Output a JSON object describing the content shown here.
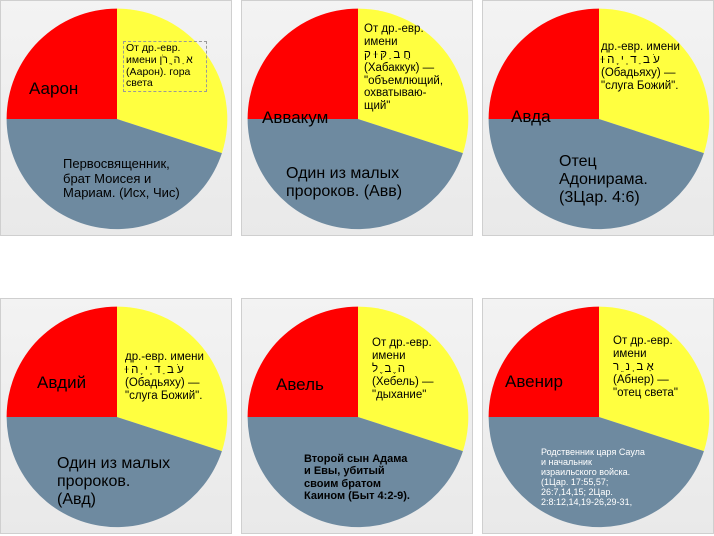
{
  "colors": {
    "red": "#ff0000",
    "yellow": "#ffff40",
    "blue": "#6e8aa0"
  },
  "panels": [
    {
      "name": "Аарон",
      "etymology": "От др.-евр.\nимени א ַ ה ֲ רֹן\n(Аарон). гора\nсвета",
      "description": "Первосвященник,\nбрат Моисея и\nМариам. (Исх, Чис)"
    },
    {
      "name": "Аввакум",
      "etymology": "От др.-евр.\nимени\nחֲ ב ַ קּ ּוּ ק\n(Хабаккук) —\n\"объемлющий,\nохватываю-\nщий\"",
      "description": "Один из малых\nпророков. (Авв)"
    },
    {
      "name": "Авда",
      "etymology": "др.-евр. имени\nעֹ ב ַ ד ְ י ָ ה ּוּ\n(Обадьяху) —\n\"слуга Божий\".",
      "description": "Отец\nАдонирама.\n(3Цар. 4:6)"
    },
    {
      "name": "Авдий",
      "etymology": "др.-евр. имени\nעֹ ב ַ ד ְ י ָ ה ּוּ\n(Обадьяху) —\n\"слуга Божий\".",
      "description": "Один из малых\nпророков.\n(Авд)"
    },
    {
      "name": "Авель",
      "etymology": "От др.-евр.\nимени\nה ֶ ב ֶ ל\n(Хебель) —\n\"дыхание\"",
      "description": "Второй сын Адама\nи Евы, убитый\nсвоим братом\nКаином (Быт 4:2-9)."
    },
    {
      "name": "Авенир",
      "etymology": "От др.-евр.\nимени\nאַ ב ְ נ ֵ ר\n(Абнер) —\n\"отец света\"",
      "description": "Родственник царя Саула\nи начальник\nизраильского войска.\n(1Цар. 17:55,57;\n26:7,14,15; 2Цар.\n2:8:12,14,19-26,29-31,"
    }
  ]
}
